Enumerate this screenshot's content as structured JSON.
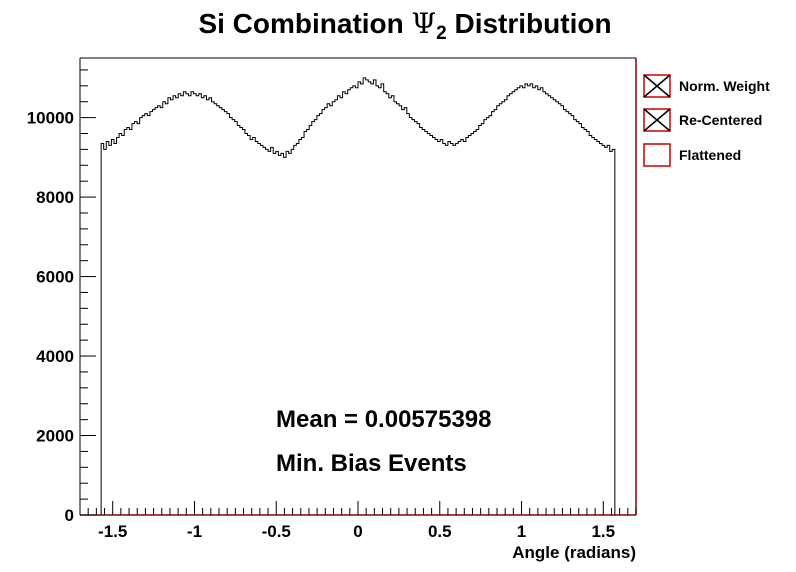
{
  "chart_data": {
    "type": "histogram",
    "title_prefix": "Si Combination ",
    "title_symbol": "Ψ",
    "title_subscript": "2",
    "title_suffix": " Distribution",
    "xlabel": "Angle (radians)",
    "ylabel": "",
    "xlim": [
      -1.7,
      1.7
    ],
    "ylim": [
      0,
      11500
    ],
    "x_ticks": [
      -1.5,
      -1,
      -0.5,
      0,
      0.5,
      1,
      1.5
    ],
    "x_tick_labels": [
      "-1.5",
      "-1",
      "-0.5",
      "0",
      "0.5",
      "1",
      "1.5"
    ],
    "y_ticks": [
      0,
      2000,
      4000,
      6000,
      8000,
      10000
    ],
    "y_tick_labels": [
      "0",
      "2000",
      "4000",
      "6000",
      "8000",
      "10000"
    ],
    "bin_range": [
      -1.5708,
      1.5708
    ],
    "series": [
      {
        "name": "Flattened",
        "values": [
          9350,
          9200,
          9400,
          9300,
          9450,
          9350,
          9500,
          9600,
          9550,
          9700,
          9750,
          9700,
          9850,
          9900,
          9850,
          10000,
          10050,
          10100,
          10050,
          10150,
          10200,
          10250,
          10300,
          10250,
          10400,
          10350,
          10500,
          10450,
          10550,
          10500,
          10600,
          10550,
          10650,
          10600,
          10550,
          10650,
          10600,
          10550,
          10600,
          10500,
          10550,
          10450,
          10500,
          10400,
          10350,
          10300,
          10250,
          10200,
          10150,
          10100,
          10000,
          9950,
          9900,
          9800,
          9750,
          9700,
          9600,
          9550,
          9450,
          9500,
          9400,
          9350,
          9300,
          9250,
          9200,
          9150,
          9250,
          9100,
          9150,
          9050,
          9100,
          9000,
          9150,
          9100,
          9200,
          9300,
          9350,
          9450,
          9500,
          9650,
          9700,
          9800,
          9900,
          9950,
          10050,
          10100,
          10200,
          10250,
          10350,
          10300,
          10400,
          10450,
          10550,
          10500,
          10650,
          10600,
          10700,
          10750,
          10800,
          10750,
          10900,
          10850,
          11000,
          10950,
          10900,
          10850,
          10950,
          10800,
          10750,
          10850,
          10650,
          10600,
          10500,
          10550,
          10400,
          10350,
          10300,
          10200,
          10250,
          10100,
          10000,
          9950,
          9900,
          9850,
          9750,
          9700,
          9650,
          9600,
          9550,
          9500,
          9450,
          9400,
          9450,
          9350,
          9300,
          9400,
          9350,
          9300,
          9350,
          9400,
          9450,
          9400,
          9500,
          9550,
          9600,
          9650,
          9700,
          9800,
          9850,
          9950,
          10000,
          10050,
          10150,
          10200,
          10300,
          10350,
          10400,
          10450,
          10550,
          10600,
          10650,
          10700,
          10750,
          10800,
          10750,
          10850,
          10800,
          10850,
          10750,
          10800,
          10700,
          10750,
          10650,
          10600,
          10550,
          10500,
          10450,
          10400,
          10350,
          10300,
          10200,
          10150,
          10100,
          10050,
          9950,
          9900,
          9850,
          9750,
          9700,
          9650,
          9550,
          9500,
          9450,
          9400,
          9350,
          9300,
          9250,
          9300,
          9150,
          9200
        ]
      }
    ],
    "legend": {
      "position": "right",
      "entries": [
        {
          "label": "Norm. Weight",
          "marker": "boxed-x",
          "color": "#cc0000"
        },
        {
          "label": "Re-Centered",
          "marker": "boxed-x",
          "color": "#cc0000"
        },
        {
          "label": "Flattened",
          "marker": "box",
          "color": "#cc0000"
        }
      ]
    },
    "annotations": {
      "mean": "Mean = 0.00575398",
      "sample": "Min. Bias Events"
    },
    "colors": {
      "histogram_line": "#000000",
      "frame_right_bottom": "#8b0000",
      "legend_box": "#cc0000"
    },
    "grid": false
  }
}
